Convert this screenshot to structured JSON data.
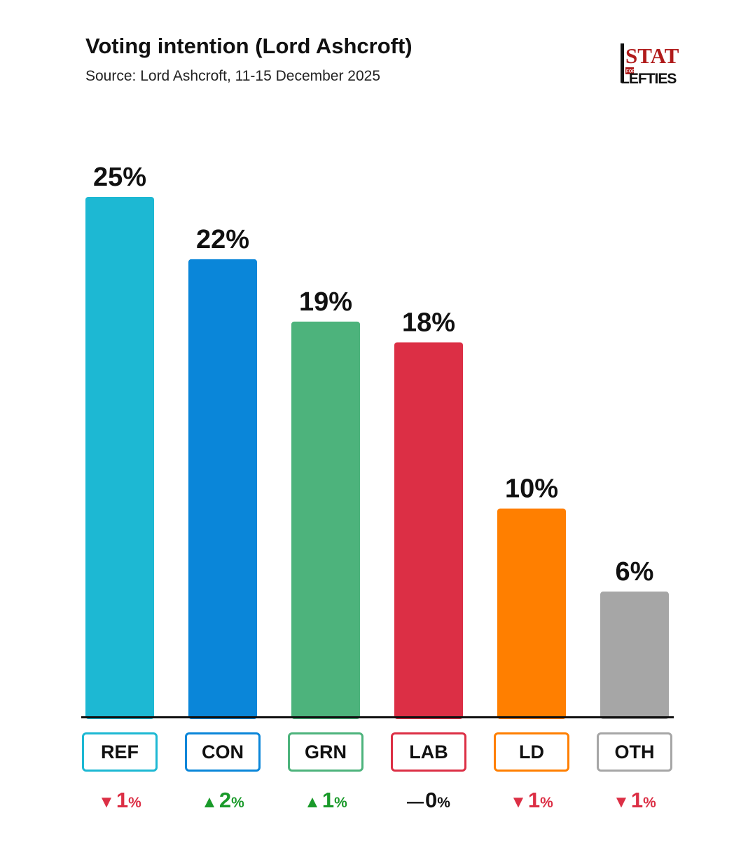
{
  "header": {
    "title": "Voting intention (Lord Ashcroft)",
    "subtitle": "Source: Lord Ashcroft, 11-15 December 2025"
  },
  "logo": {
    "line1": "STATS",
    "line2": "FOR",
    "line3": "LEFTIES",
    "color": "#b01b1b"
  },
  "chart_data": {
    "type": "bar",
    "title": "Voting intention (Lord Ashcroft)",
    "subtitle": "Source: Lord Ashcroft, 11-15 December 2025",
    "categories": [
      "REF",
      "CON",
      "GRN",
      "LAB",
      "LD",
      "OTH"
    ],
    "values": [
      25,
      22,
      19,
      18,
      10,
      6
    ],
    "value_labels": [
      "25%",
      "22%",
      "19%",
      "18%",
      "10%",
      "6%"
    ],
    "colors": [
      "#1db8d3",
      "#0a86d9",
      "#4db37c",
      "#dc2f45",
      "#ff7f00",
      "#a6a6a6"
    ],
    "ylim": [
      0,
      25
    ],
    "grid": false,
    "legend": "none",
    "changes": [
      {
        "direction": "down",
        "arrow": "▼",
        "value": "1",
        "unit": "%",
        "color": "#dc2f45"
      },
      {
        "direction": "up",
        "arrow": "▲",
        "value": "2",
        "unit": "%",
        "color": "#1a9a2a"
      },
      {
        "direction": "up",
        "arrow": "▲",
        "value": "1",
        "unit": "%",
        "color": "#1a9a2a"
      },
      {
        "direction": "none",
        "arrow": "—",
        "value": "0",
        "unit": "%",
        "color": "#111111"
      },
      {
        "direction": "down",
        "arrow": "▼",
        "value": "1",
        "unit": "%",
        "color": "#dc2f45"
      },
      {
        "direction": "down",
        "arrow": "▼",
        "value": "1",
        "unit": "%",
        "color": "#dc2f45"
      }
    ]
  }
}
